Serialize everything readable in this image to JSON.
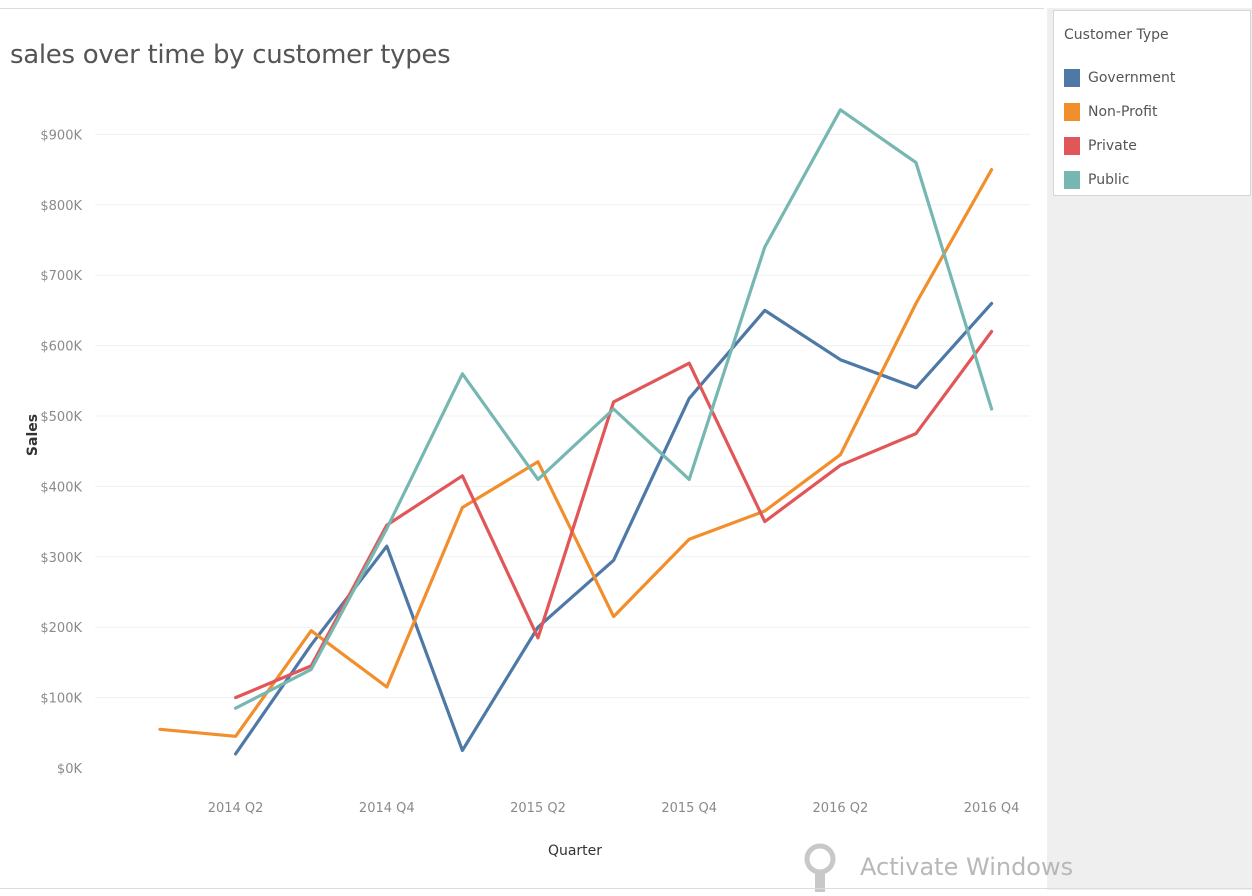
{
  "chart_data": {
    "type": "line",
    "title": "sales over time by customer types",
    "xlabel": "Quarter",
    "ylabel": "Sales",
    "ylim": [
      0,
      950000
    ],
    "grid": true,
    "legend_position": "top-right",
    "legend_title": "Customer Type",
    "y_ticks": [
      0,
      100000,
      200000,
      300000,
      400000,
      500000,
      600000,
      700000,
      800000,
      900000
    ],
    "y_tick_labels": [
      "$0K",
      "$100K",
      "$200K",
      "$300K",
      "$400K",
      "$500K",
      "$600K",
      "$700K",
      "$800K",
      "$900K"
    ],
    "quarters": [
      "2014 Q1",
      "2014 Q2",
      "2014 Q3",
      "2014 Q4",
      "2015 Q1",
      "2015 Q2",
      "2015 Q3",
      "2015 Q4",
      "2016 Q1",
      "2016 Q2",
      "2016 Q3",
      "2016 Q4"
    ],
    "x_tick_labels": [
      "2014 Q2",
      "2014 Q4",
      "2015 Q2",
      "2015 Q4",
      "2016 Q2",
      "2016 Q4"
    ],
    "x_tick_indices": [
      1,
      3,
      5,
      7,
      9,
      11
    ],
    "series": [
      {
        "name": "Government",
        "color": "#4e79a7",
        "values": [
          null,
          20000,
          175000,
          315000,
          25000,
          200000,
          295000,
          525000,
          650000,
          580000,
          540000,
          660000
        ]
      },
      {
        "name": "Non-Profit",
        "color": "#f28e2b",
        "values": [
          55000,
          45000,
          195000,
          115000,
          370000,
          435000,
          215000,
          325000,
          365000,
          445000,
          660000,
          850000
        ]
      },
      {
        "name": "Private",
        "color": "#e15759",
        "values": [
          null,
          100000,
          145000,
          345000,
          415000,
          185000,
          520000,
          575000,
          350000,
          430000,
          475000,
          620000
        ]
      },
      {
        "name": "Public",
        "color": "#76b7b2",
        "values": [
          null,
          85000,
          140000,
          340000,
          560000,
          410000,
          510000,
          410000,
          740000,
          935000,
          860000,
          510000
        ]
      }
    ]
  },
  "watermark": {
    "text": "Activate Windows"
  }
}
